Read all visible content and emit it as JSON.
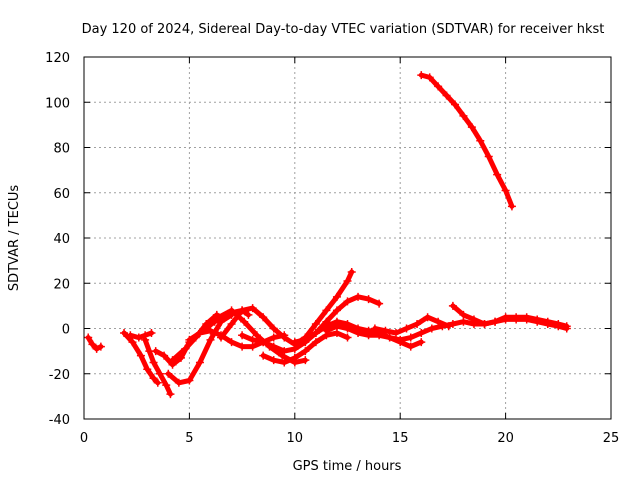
{
  "chart_data": {
    "type": "scatter",
    "title": "Day 120 of 2024, Sidereal Day-to-day VTEC variation (SDTVAR) for receiver hkst",
    "xlabel": "GPS time / hours",
    "ylabel": "SDTVAR / TECUs",
    "xlim": [
      0,
      25
    ],
    "ylim": [
      -40,
      120
    ],
    "xticks": [
      0,
      5,
      10,
      15,
      20,
      25
    ],
    "yticks": [
      -40,
      -20,
      0,
      20,
      40,
      60,
      80,
      100,
      120
    ],
    "grid": true,
    "marker": "plus",
    "color": "#ff0000",
    "series": [
      {
        "name": "s1",
        "x": [
          0.2,
          0.4,
          0.6,
          0.8
        ],
        "y": [
          -4,
          -7,
          -9,
          -8
        ]
      },
      {
        "name": "s2",
        "x": [
          1.9,
          2.3,
          2.7,
          3.0,
          3.3,
          3.5
        ],
        "y": [
          -2,
          -6,
          -12,
          -18,
          -22,
          -24
        ]
      },
      {
        "name": "s3",
        "x": [
          2.2,
          2.6,
          2.9,
          3.2
        ],
        "y": [
          -3,
          -4,
          -3,
          -2
        ]
      },
      {
        "name": "s4",
        "x": [
          2.9,
          3.1,
          3.3,
          3.6,
          3.9,
          4.1
        ],
        "y": [
          -5,
          -10,
          -15,
          -20,
          -25,
          -29
        ]
      },
      {
        "name": "s5",
        "x": [
          3.4,
          3.8,
          4.2,
          4.6,
          5.0,
          5.6,
          6.2,
          7.0,
          7.5,
          7.8
        ],
        "y": [
          -10,
          -12,
          -16,
          -13,
          -6,
          -1,
          3,
          7,
          8,
          6
        ]
      },
      {
        "name": "s6",
        "x": [
          4.0,
          4.5,
          5.0,
          5.5,
          6.0,
          6.5,
          7.0
        ],
        "y": [
          -20,
          -24,
          -23,
          -15,
          -5,
          3,
          6
        ]
      },
      {
        "name": "s7",
        "x": [
          4.2,
          4.8,
          5.3,
          5.8,
          6.3
        ],
        "y": [
          -14,
          -9,
          -4,
          2,
          6
        ]
      },
      {
        "name": "s8",
        "x": [
          5.0,
          5.5,
          6.0,
          6.5,
          7.0,
          7.5,
          8.0,
          8.5,
          9.0,
          9.5
        ],
        "y": [
          -5,
          -2,
          -1,
          -3,
          -6,
          -8,
          -8,
          -6,
          -4,
          -3
        ]
      },
      {
        "name": "s9",
        "x": [
          5.8,
          6.4,
          7.0,
          7.6,
          8.2,
          8.8,
          9.4,
          10.0,
          10.5
        ],
        "y": [
          0,
          5,
          8,
          3,
          -3,
          -8,
          -12,
          -15,
          -14
        ]
      },
      {
        "name": "s10",
        "x": [
          6.5,
          7.0,
          7.5,
          8.0,
          8.5,
          9.0,
          9.5,
          10.0,
          10.5,
          11.0,
          11.5,
          12.0,
          12.5,
          12.7
        ],
        "y": [
          -4,
          2,
          8,
          9,
          5,
          0,
          -4,
          -7,
          -4,
          2,
          8,
          14,
          21,
          25
        ]
      },
      {
        "name": "s11",
        "x": [
          7.5,
          8.0,
          8.5,
          9.0,
          9.5,
          10.0,
          10.5,
          11.0,
          11.5,
          12.0,
          12.5,
          13.0,
          13.5,
          14.0
        ],
        "y": [
          -3,
          -5,
          -6,
          -8,
          -10,
          -9,
          -6,
          -2,
          3,
          8,
          12,
          14,
          13,
          11
        ]
      },
      {
        "name": "s12",
        "x": [
          8.5,
          9.0,
          9.5,
          10.0,
          10.5,
          11.0,
          11.5,
          12.0,
          12.5
        ],
        "y": [
          -12,
          -14,
          -15,
          -13,
          -10,
          -6,
          -3,
          -2,
          -4
        ]
      },
      {
        "name": "s13",
        "x": [
          10.0,
          10.5,
          11.0,
          11.5,
          12.0,
          12.5,
          13.0,
          13.5,
          14.0,
          14.5,
          15.0,
          15.5,
          16.0
        ],
        "y": [
          -6,
          -5,
          -2,
          1,
          3,
          2,
          0,
          -1,
          -2,
          -4,
          -6,
          -8,
          -6
        ]
      },
      {
        "name": "s14",
        "x": [
          11.5,
          12.0,
          12.5,
          13.0,
          13.5,
          14.0,
          14.5,
          15.0,
          15.5,
          16.0,
          16.5,
          17.0,
          17.5,
          18.0,
          18.5,
          19.0,
          19.5,
          20.0,
          20.5,
          21.0,
          21.5,
          22.0,
          22.5,
          22.9
        ],
        "y": [
          -1,
          1,
          0,
          -2,
          -3,
          -3,
          -4,
          -5,
          -4,
          -2,
          0,
          1,
          2,
          3,
          2,
          2,
          3,
          4,
          4,
          4,
          3,
          2,
          1,
          0
        ]
      },
      {
        "name": "s15",
        "x": [
          13.8,
          14.3,
          14.8,
          15.3,
          15.8,
          16.3,
          16.8,
          17.3
        ],
        "y": [
          0,
          -1,
          -2,
          0,
          2,
          5,
          3,
          1
        ]
      },
      {
        "name": "s16",
        "x": [
          17.5,
          18.0,
          18.5,
          19.0,
          19.5,
          20.0,
          20.5,
          21.0,
          21.5,
          22.0,
          22.5,
          22.9
        ],
        "y": [
          10,
          6,
          4,
          2,
          3,
          5,
          5,
          5,
          4,
          3,
          2,
          1
        ]
      },
      {
        "name": "s17",
        "x": [
          16.0,
          16.4,
          16.8,
          17.2,
          17.6,
          18.0,
          18.4,
          18.8,
          19.2,
          19.6,
          20.0,
          20.3
        ],
        "y": [
          112,
          111,
          107,
          103,
          99,
          94,
          89,
          83,
          76,
          68,
          61,
          54
        ]
      }
    ]
  }
}
